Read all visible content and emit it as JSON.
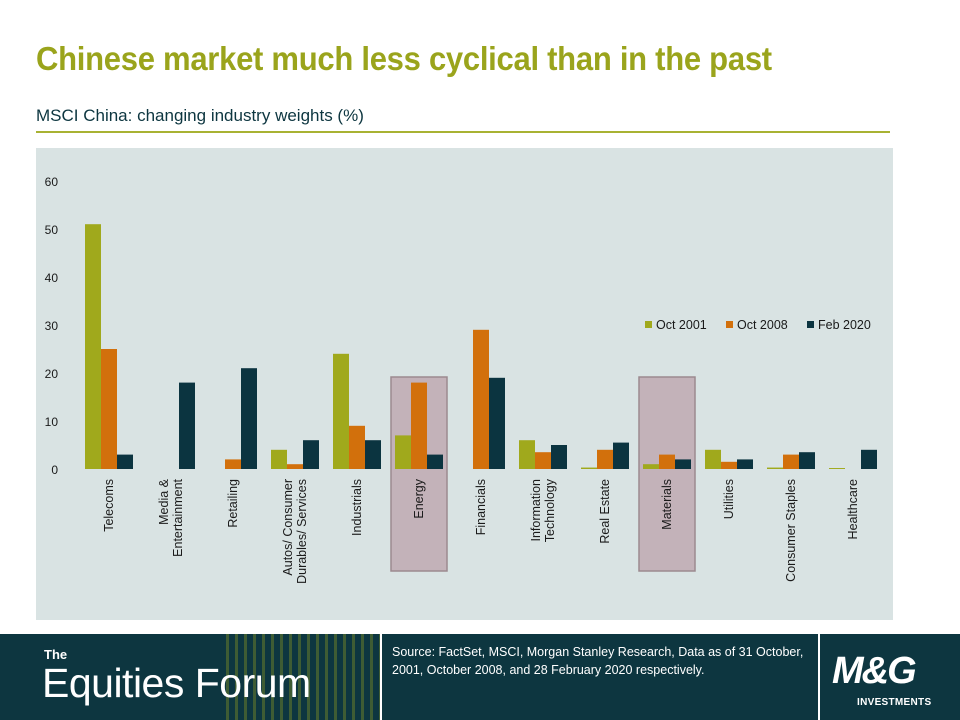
{
  "slide": {
    "title": "Chinese market much less cyclical than in the past",
    "subtitle": "MSCI China: changing industry weights (%)"
  },
  "colors": {
    "title": "#9aa41c",
    "oct2001": "#a0a91c",
    "oct2008": "#d2700c",
    "feb2020": "#0b3440",
    "highlight": "#b08a98",
    "panel": "#d9e3e3",
    "footer": "#0d3640"
  },
  "chart_data": {
    "type": "bar",
    "categories": [
      [
        "Telecoms"
      ],
      [
        "Media &",
        "Entertainment"
      ],
      [
        "Retailing"
      ],
      [
        "Autos/ Consumer",
        "Durables/ Services"
      ],
      [
        "Industrials"
      ],
      [
        "Energy"
      ],
      [
        "Financials"
      ],
      [
        "Information",
        "Technology"
      ],
      [
        "Real Estate"
      ],
      [
        "Materials"
      ],
      [
        "Utilities"
      ],
      [
        "Consumer Staples"
      ],
      [
        "Healthcare"
      ]
    ],
    "series": [
      {
        "name": "Oct 2001",
        "values": [
          51,
          0,
          0,
          4,
          24,
          7,
          0,
          6,
          0.3,
          1,
          4,
          0.3,
          0.2
        ]
      },
      {
        "name": "Oct 2008",
        "values": [
          25,
          0,
          2,
          1,
          9,
          18,
          29,
          3.5,
          4,
          3,
          1.5,
          3,
          0
        ]
      },
      {
        "name": "Feb 2020",
        "values": [
          3,
          18,
          21,
          6,
          6,
          3,
          19,
          5,
          5.5,
          2,
          2,
          3.5,
          4
        ]
      }
    ],
    "highlighted_categories": [
      "Energy",
      "Materials"
    ],
    "ylim": [
      0,
      60
    ],
    "yticks": [
      0,
      10,
      20,
      30,
      40,
      50,
      60
    ],
    "legend_position": "right",
    "grid": false
  },
  "footer": {
    "brand_line1": "The",
    "brand_line2": "Equities Forum",
    "source": "Source: FactSet, MSCI, Morgan Stanley Research, Data as of 31 October, 2001, October 2008, and 28 February 2020 respectively.",
    "logo_text": "M&G",
    "logo_sub": "INVESTMENTS"
  }
}
